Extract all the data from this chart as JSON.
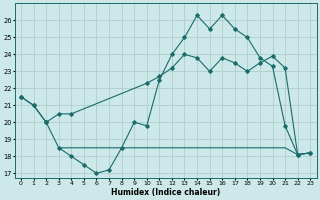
{
  "xlabel": "Humidex (Indice chaleur)",
  "bg_color": "#cce8e8",
  "grid_color": "#b0cccc",
  "line_color": "#1a6b6b",
  "xlim": [
    -0.5,
    23.5
  ],
  "ylim": [
    16.7,
    27.0
  ],
  "yticks": [
    17,
    18,
    19,
    20,
    21,
    22,
    23,
    24,
    25,
    26
  ],
  "xticks": [
    0,
    1,
    2,
    3,
    4,
    5,
    6,
    7,
    8,
    9,
    10,
    11,
    12,
    13,
    14,
    15,
    16,
    17,
    18,
    19,
    20,
    21,
    22,
    23
  ],
  "curve1_x": [
    0,
    1,
    2,
    3,
    4,
    5,
    6,
    7,
    8,
    9,
    10,
    11,
    12,
    13,
    14,
    15,
    16,
    17,
    18,
    19,
    20,
    21,
    22,
    23
  ],
  "curve1_y": [
    21.5,
    21.0,
    20.0,
    18.5,
    18.0,
    17.5,
    17.0,
    17.2,
    18.5,
    20.0,
    19.8,
    22.5,
    24.0,
    25.0,
    26.3,
    25.5,
    26.3,
    25.5,
    25.0,
    23.8,
    23.3,
    19.8,
    18.1,
    18.2
  ],
  "curve2_x": [
    0,
    1,
    2,
    3,
    4,
    10,
    11,
    12,
    13,
    14,
    15,
    16,
    17,
    18,
    19,
    20,
    21,
    22,
    23
  ],
  "curve2_y": [
    21.5,
    21.0,
    20.0,
    20.5,
    20.5,
    22.3,
    22.7,
    23.2,
    24.0,
    23.8,
    23.0,
    23.8,
    23.5,
    23.0,
    23.5,
    23.9,
    23.2,
    18.1,
    18.2
  ],
  "curve3_x": [
    3,
    4,
    10,
    11,
    18,
    19,
    20,
    21,
    22,
    23
  ],
  "curve3_y": [
    18.5,
    18.5,
    18.5,
    18.5,
    18.5,
    18.5,
    18.5,
    18.5,
    18.1,
    18.2
  ]
}
